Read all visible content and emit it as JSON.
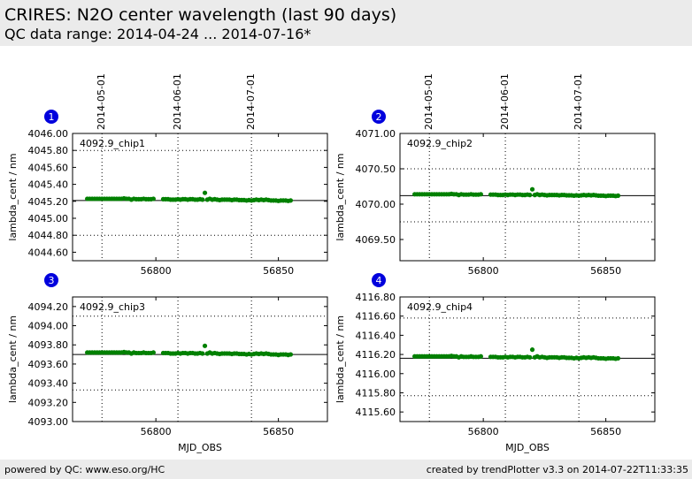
{
  "header": {
    "title": "CRIRES: N2O center wavelength (last 90 days)",
    "subtitle": "QC data range: 2014-04-24 ... 2014-07-16*"
  },
  "footer": {
    "left": "powered by QC: www.eso.org/HC",
    "right": "created by trendPlotter v3.3 on 2014-07-22T11:33:35"
  },
  "colors": {
    "points": "#008000",
    "badge": "#0000dd"
  },
  "chart_data": {
    "type": "scatter",
    "x_axis_label": "MJD_OBS",
    "y_axis_label": "lambda_cent / nm",
    "xlim": [
      56766,
      56870
    ],
    "x_ticks": [
      56800,
      56850
    ],
    "date_ticks": [
      {
        "label": "2014-05-01",
        "mjd": 56778
      },
      {
        "label": "2014-06-01",
        "mjd": 56809
      },
      {
        "label": "2014-07-01",
        "mjd": 56839
      }
    ],
    "sampling": {
      "x": [
        56772,
        56773,
        56774,
        56775,
        56776,
        56777,
        56778,
        56779,
        56780,
        56781,
        56782,
        56783,
        56784,
        56785,
        56786,
        56787,
        56788,
        56789,
        56790,
        56791,
        56792,
        56793,
        56794,
        56795,
        56796,
        56797,
        56798,
        56799,
        56803,
        56804,
        56805,
        56806,
        56807,
        56808,
        56809,
        56810,
        56811,
        56812,
        56813,
        56814,
        56815,
        56816,
        56817,
        56818,
        56819,
        56820,
        56821,
        56822,
        56823,
        56824,
        56825,
        56826,
        56827,
        56828,
        56829,
        56830,
        56831,
        56832,
        56833,
        56834,
        56835,
        56836,
        56837,
        56838,
        56839,
        56840,
        56841,
        56842,
        56843,
        56844,
        56845,
        56846,
        56847,
        56848,
        56849,
        56850,
        56851,
        56852,
        56853,
        56854,
        56855
      ],
      "offsets": [
        0,
        0,
        0,
        0,
        0,
        0,
        0,
        0,
        0,
        0,
        0,
        0,
        0,
        0,
        0,
        0.005,
        0,
        0,
        -0.01,
        0,
        -0.005,
        -0.005,
        -0.005,
        0,
        -0.005,
        -0.005,
        -0.005,
        0,
        -0.005,
        -0.005,
        -0.005,
        -0.01,
        -0.01,
        -0.01,
        -0.005,
        -0.01,
        -0.005,
        -0.005,
        -0.01,
        -0.005,
        -0.005,
        -0.01,
        -0.01,
        -0.005,
        -0.01,
        0.07,
        -0.01,
        0,
        -0.01,
        -0.005,
        -0.01,
        -0.015,
        -0.01,
        -0.01,
        -0.01,
        -0.01,
        -0.015,
        -0.01,
        -0.01,
        -0.015,
        -0.015,
        -0.015,
        -0.02,
        -0.015,
        -0.02,
        -0.015,
        -0.01,
        -0.015,
        -0.01,
        -0.015,
        -0.01,
        -0.015,
        -0.02,
        -0.02,
        -0.02,
        -0.025,
        -0.02,
        -0.02,
        -0.02,
        -0.025,
        -0.02
      ]
    },
    "panels": [
      {
        "number": "1",
        "label": "4092.9_chip1",
        "ylim": [
          4044.5,
          4046.0
        ],
        "y_ticks": [
          "4044.60",
          "4044.80",
          "4045.00",
          "4045.20",
          "4045.40",
          "4045.60",
          "4045.80",
          "4046.00"
        ],
        "y_grid": [
          4044.8,
          4045.8
        ],
        "mean": 4045.21,
        "base": 4045.23
      },
      {
        "number": "2",
        "label": "4092.9_chip2",
        "ylim": [
          4069.2,
          4071.0
        ],
        "y_ticks": [
          "4069.50",
          "4070.00",
          "4070.50",
          "4071.00"
        ],
        "y_grid": [
          4069.75,
          4070.5
        ],
        "mean": 4070.12,
        "base": 4070.14
      },
      {
        "number": "3",
        "label": "4092.9_chip3",
        "ylim": [
          4093.0,
          4094.3
        ],
        "y_ticks": [
          "4093.00",
          "4093.20",
          "4093.40",
          "4093.60",
          "4093.80",
          "4094.00",
          "4094.20"
        ],
        "y_grid": [
          4093.33,
          4094.1
        ],
        "mean": 4093.7,
        "base": 4093.72
      },
      {
        "number": "4",
        "label": "4092.9_chip4",
        "ylim": [
          4115.5,
          4116.8
        ],
        "y_ticks": [
          "4115.60",
          "4115.80",
          "4116.00",
          "4116.20",
          "4116.40",
          "4116.60",
          "4116.80"
        ],
        "y_grid": [
          4115.77,
          4116.58
        ],
        "mean": 4116.16,
        "base": 4116.18
      }
    ]
  }
}
